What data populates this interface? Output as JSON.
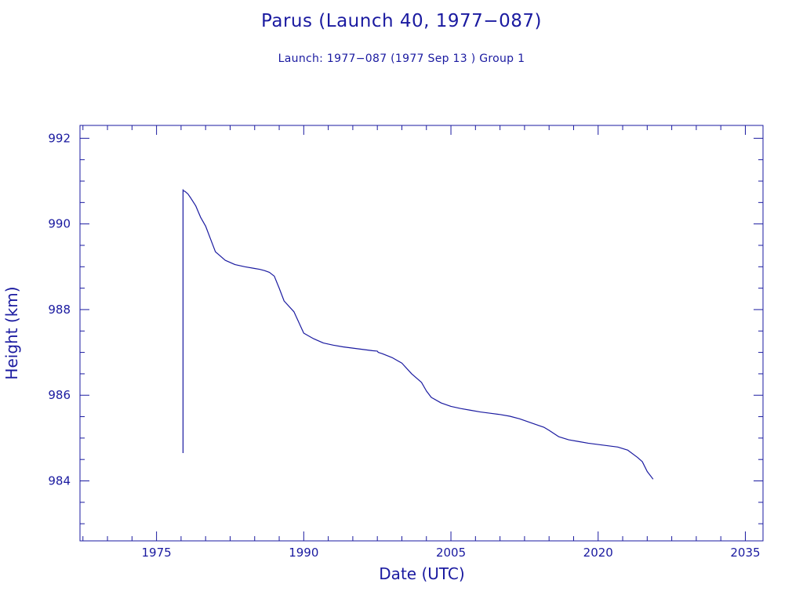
{
  "chart_data": {
    "type": "line",
    "title": "Parus (Launch 40, 1977−087)",
    "subtitle": "Launch: 1977−087  (1977 Sep 13 )  Group 1",
    "xlabel": "Date (UTC)",
    "ylabel": "Height (km)",
    "xlim": [
      1967.2,
      2036.8
    ],
    "ylim": [
      982.6,
      992.3
    ],
    "x_ticks": [
      1975,
      1990,
      2005,
      2020,
      2035
    ],
    "y_ticks": [
      984,
      986,
      988,
      990,
      992
    ],
    "grid": false,
    "legend": "none",
    "series": [
      {
        "x": [
          1977.7,
          1977.7,
          1977.7,
          1977.9,
          1978.2,
          1978.5,
          1979.0,
          1979.5,
          1980.0,
          1980.5,
          1981.0,
          1982.0,
          1983.0,
          1984.0,
          1985.0,
          1985.5,
          1986.0,
          1986.5,
          1987.0,
          1987.5,
          1988.0,
          1989.0,
          1990.0,
          1991.0,
          1991.5,
          1992.0,
          1993.0,
          1994.0,
          1995.0,
          1996.0,
          1997.0,
          1997.5,
          1997.6,
          1998.0,
          1999.0,
          2000.0,
          2001.0,
          2002.0,
          2002.5,
          2003.0,
          2004.0,
          2005.0,
          2006.0,
          2007.0,
          2008.0,
          2009.0,
          2010.0,
          2011.0,
          2012.0,
          2013.0,
          2014.0,
          2014.5,
          2015.0,
          2016.0,
          2017.0,
          2018.0,
          2019.0,
          2020.0,
          2021.0,
          2022.0,
          2023.0,
          2024.0,
          2024.5,
          2025.0,
          2025.6
        ],
        "y": [
          984.65,
          990.8,
          990.78,
          990.76,
          990.7,
          990.6,
          990.42,
          990.15,
          989.95,
          989.65,
          989.35,
          989.15,
          989.05,
          989.0,
          988.96,
          988.94,
          988.91,
          988.87,
          988.78,
          988.5,
          988.2,
          987.95,
          987.45,
          987.32,
          987.27,
          987.22,
          987.17,
          987.13,
          987.1,
          987.07,
          987.04,
          987.03,
          987.0,
          986.97,
          986.88,
          986.75,
          986.5,
          986.3,
          986.1,
          985.95,
          985.82,
          985.74,
          985.69,
          985.65,
          985.61,
          985.58,
          985.55,
          985.51,
          985.45,
          985.37,
          985.29,
          985.25,
          985.18,
          985.03,
          984.96,
          984.92,
          984.88,
          984.85,
          984.82,
          984.79,
          984.72,
          984.55,
          984.45,
          984.22,
          984.04
        ]
      }
    ]
  },
  "colors": {
    "ink": "#1a1aa0"
  }
}
